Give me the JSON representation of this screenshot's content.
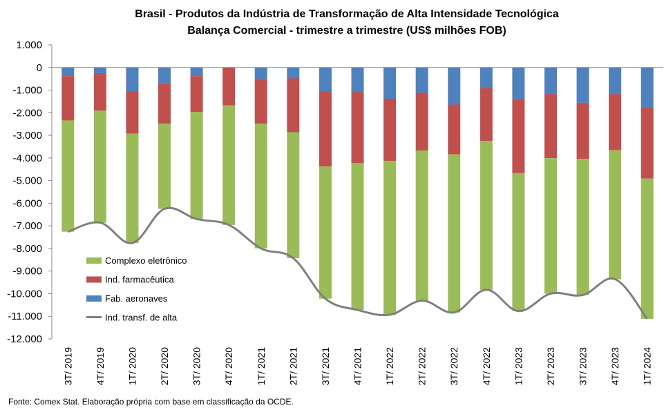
{
  "chart_data": {
    "type": "bar",
    "stacked": true,
    "title": "Brasil - Produtos da Indústria de Transformação  de Alta Intensidade Tecnológica",
    "subtitle": "Balança Comercial - trimestre a trimestre (US$ milhões FOB)",
    "xlabel": "",
    "ylabel": "",
    "ylim": [
      -12000,
      1000
    ],
    "yticks": [
      1000,
      0,
      -1000,
      -2000,
      -3000,
      -4000,
      -5000,
      -6000,
      -7000,
      -8000,
      -9000,
      -10000,
      -11000,
      -12000
    ],
    "ytick_labels": [
      "1.000",
      "0",
      "-1.000",
      "-2.000",
      "-3.000",
      "-4.000",
      "-5.000",
      "-6.000",
      "-7.000",
      "-8.000",
      "-9.000",
      "-10.000",
      "-11.000",
      "-12.000"
    ],
    "grid": false,
    "legend_position": "bottom-left",
    "categories": [
      "3T/ 2019",
      "4T/ 2019",
      "1T/ 2020",
      "2T/ 2020",
      "3T/ 2020",
      "4T/ 2020",
      "1T/ 2021",
      "2T/ 2021",
      "3T/ 2021",
      "4T/ 2021",
      "1T/ 2022",
      "2T/ 2022",
      "3T/ 2022",
      "4T/ 2022",
      "1T/ 2023",
      "2T/ 2023",
      "3T/ 2023",
      "4T/ 2023",
      "1T/ 2024"
    ],
    "series": [
      {
        "name": "Fab. aeronaves",
        "type": "bar",
        "color": "#4f81bd",
        "values": [
          -380,
          -250,
          -1060,
          -700,
          -380,
          0,
          -500,
          -480,
          -1060,
          -1090,
          -1380,
          -1120,
          -1640,
          -910,
          -1390,
          -1180,
          -1560,
          -1180,
          -1760
        ]
      },
      {
        "name": "Ind. farmacêutica",
        "type": "bar",
        "color": "#c0504d",
        "values": [
          -1960,
          -1660,
          -1860,
          -1780,
          -1580,
          -1680,
          -1980,
          -2380,
          -3320,
          -3140,
          -2750,
          -2550,
          -2200,
          -2340,
          -3280,
          -2830,
          -2480,
          -2480,
          -3150
        ]
      },
      {
        "name": "Complexo eletrônico",
        "type": "bar",
        "color": "#9bbb59",
        "values": [
          -4920,
          -4950,
          -4840,
          -3770,
          -4740,
          -5280,
          -5520,
          -5570,
          -5840,
          -6490,
          -6800,
          -6640,
          -6990,
          -6580,
          -6100,
          -5990,
          -6020,
          -5700,
          -6200
        ]
      },
      {
        "name": "Ind. transf. de alta",
        "type": "line",
        "color": "#7f7f7f",
        "values": [
          -7260,
          -6860,
          -7760,
          -6250,
          -6700,
          -6960,
          -8000,
          -8430,
          -10220,
          -10720,
          -10930,
          -10310,
          -10830,
          -9830,
          -10770,
          -10000,
          -10060,
          -9360,
          -11110
        ]
      }
    ]
  },
  "source": "Fonte:  Comex Stat. Elaboração própria com base em classificação da OCDE."
}
